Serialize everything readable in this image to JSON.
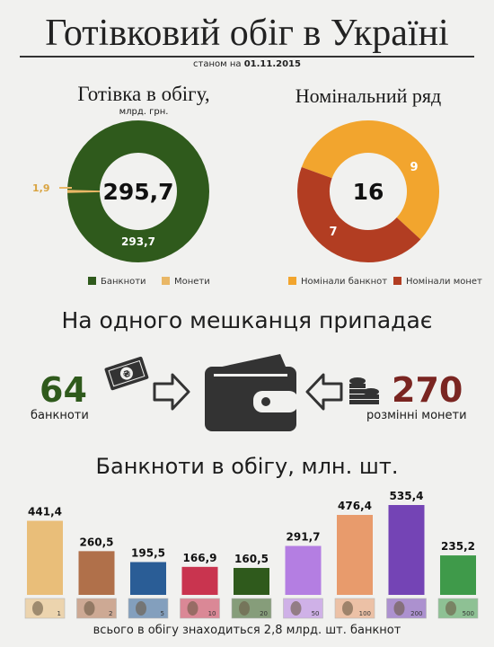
{
  "header": {
    "title": "Готівковий обіг в Україні",
    "as_of_prefix": "станом на",
    "as_of_date": "01.11.2015"
  },
  "cash_chart": {
    "title": "Готівка в обігу,",
    "unit": "млрд. грн.",
    "total_label": "295,7",
    "coins_label": "1,9",
    "banknotes_label": "293,7",
    "legend_banknotes": "Банкноти",
    "legend_coins": "Монети"
  },
  "denom_chart": {
    "title": "Номінальний ряд",
    "total_label": "16",
    "banknotes_label": "9",
    "coins_label": "7",
    "legend_banknotes": "Номінали банкнот",
    "legend_coins": "Номінали монет"
  },
  "per_capita": {
    "title": "На одного мешканця припадає",
    "banknotes_value": "64",
    "banknotes_label": "банкноти",
    "coins_value": "270",
    "coins_label": "розмінні монети"
  },
  "bars_section": {
    "title": "Банкноти в обігу, млн. шт.",
    "footer": "всього в обігу знаходиться 2,8 млрд. шт. банкнот"
  },
  "colors": {
    "green": "#2f5a1c",
    "coin_yellow": "#e9b766",
    "orange": "#f2a52e",
    "brown_red": "#b23d22",
    "dark_red": "#7a2521",
    "icon": "#333333"
  },
  "icons": [
    "banknote-icon",
    "arrow-right-icon",
    "wallet-icon",
    "arrow-left-icon",
    "coins-icon"
  ],
  "chart_data": [
    {
      "type": "pie",
      "title": "Готівка в обігу,",
      "unit": "млрд. грн.",
      "total": 295.7,
      "slices": [
        {
          "name": "Банкноти",
          "value": 293.7,
          "color": "#2f5a1c"
        },
        {
          "name": "Монети",
          "value": 1.9,
          "color": "#e9b766"
        }
      ],
      "legend": "bottom"
    },
    {
      "type": "pie",
      "title": "Номінальний ряд",
      "total": 16,
      "slices": [
        {
          "name": "Номінали банкнот",
          "value": 9,
          "color": "#f2a52e"
        },
        {
          "name": "Номінали монет",
          "value": 7,
          "color": "#b23d22"
        }
      ],
      "legend": "bottom"
    },
    {
      "type": "bar",
      "title": "Банкноти в обігу, млн. шт.",
      "categories": [
        "1",
        "2",
        "5",
        "10",
        "20",
        "50",
        "100",
        "200",
        "500"
      ],
      "values": [
        441.4,
        260.5,
        195.5,
        166.9,
        160.5,
        291.7,
        476.4,
        535.4,
        235.2
      ],
      "value_labels": [
        "441,4",
        "260,5",
        "195,5",
        "166,9",
        "160,5",
        "291,7",
        "476,4",
        "535,4",
        "235,2"
      ],
      "colors": [
        "#e9be79",
        "#b0704a",
        "#2a5d96",
        "#c9344f",
        "#2f5a1c",
        "#b47ee2",
        "#e89b6c",
        "#7444b5",
        "#3f9a4a"
      ],
      "ylim": [
        0,
        535.4
      ],
      "grid": false
    }
  ]
}
